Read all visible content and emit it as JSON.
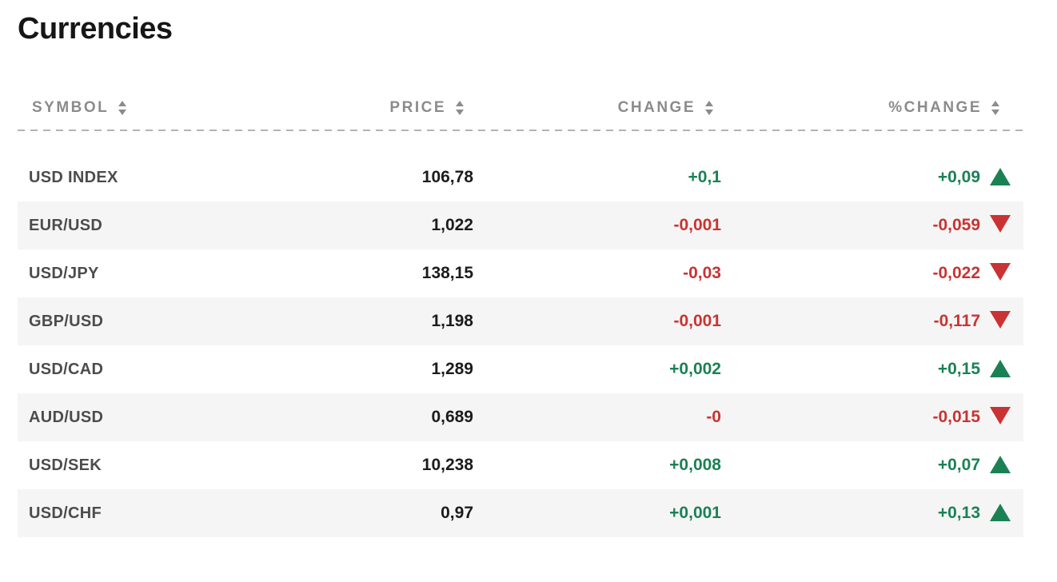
{
  "page": {
    "title": "Currencies"
  },
  "colors": {
    "positive": "#1b8155",
    "negative": "#c93333",
    "stripe": "#f5f5f5",
    "header_text": "#8b8b8b"
  },
  "table": {
    "columns": [
      {
        "label": "SYMBOL"
      },
      {
        "label": "PRICE"
      },
      {
        "label": "CHANGE"
      },
      {
        "label": "%CHANGE"
      }
    ],
    "rows": [
      {
        "symbol": "USD INDEX",
        "price": "106,78",
        "change": "+0,1",
        "pct_change": "+0,09",
        "direction": "up"
      },
      {
        "symbol": "EUR/USD",
        "price": "1,022",
        "change": "-0,001",
        "pct_change": "-0,059",
        "direction": "down"
      },
      {
        "symbol": "USD/JPY",
        "price": "138,15",
        "change": "-0,03",
        "pct_change": "-0,022",
        "direction": "down"
      },
      {
        "symbol": "GBP/USD",
        "price": "1,198",
        "change": "-0,001",
        "pct_change": "-0,117",
        "direction": "down"
      },
      {
        "symbol": "USD/CAD",
        "price": "1,289",
        "change": "+0,002",
        "pct_change": "+0,15",
        "direction": "up"
      },
      {
        "symbol": "AUD/USD",
        "price": "0,689",
        "change": "-0",
        "pct_change": "-0,015",
        "direction": "down"
      },
      {
        "symbol": "USD/SEK",
        "price": "10,238",
        "change": "+0,008",
        "pct_change": "+0,07",
        "direction": "up"
      },
      {
        "symbol": "USD/CHF",
        "price": "0,97",
        "change": "+0,001",
        "pct_change": "+0,13",
        "direction": "up"
      }
    ]
  }
}
